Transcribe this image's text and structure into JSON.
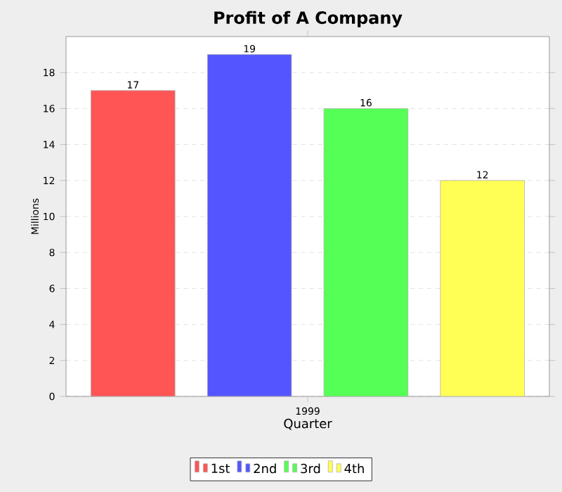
{
  "chart_data": {
    "type": "bar",
    "title": "Profit of A Company",
    "xlabel": "Quarter",
    "ylabel": "Millions",
    "categories": [
      "1999"
    ],
    "series": [
      {
        "name": "1st",
        "color": "#ff5555",
        "values": [
          17
        ]
      },
      {
        "name": "2nd",
        "color": "#5555ff",
        "values": [
          19
        ]
      },
      {
        "name": "3rd",
        "color": "#55ff55",
        "values": [
          16
        ]
      },
      {
        "name": "4th",
        "color": "#ffff55",
        "values": [
          12
        ]
      }
    ],
    "ylim": [
      0,
      20
    ],
    "yticks": [
      0,
      2,
      4,
      6,
      8,
      10,
      12,
      14,
      16,
      18
    ],
    "grid": "y",
    "legend": "bottom",
    "data_labels": true
  }
}
